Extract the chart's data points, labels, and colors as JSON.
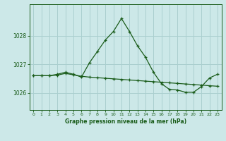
{
  "title": "Graphe pression niveau de la mer (hPa)",
  "background_color": "#cce8e8",
  "grid_color": "#aacfcf",
  "line_color": "#1a5c1a",
  "marker_color": "#1a5c1a",
  "xlim": [
    -0.5,
    23.5
  ],
  "ylim": [
    1025.4,
    1029.1
  ],
  "yticks": [
    1026,
    1027,
    1028
  ],
  "xticks": [
    0,
    1,
    2,
    3,
    4,
    5,
    6,
    7,
    8,
    9,
    10,
    11,
    12,
    13,
    14,
    15,
    16,
    17,
    18,
    19,
    20,
    21,
    22,
    23
  ],
  "series1_x": [
    0,
    1,
    2,
    3,
    4,
    5,
    6,
    7,
    8,
    9,
    10,
    11,
    12,
    13,
    14,
    15,
    16,
    17,
    18,
    19,
    20,
    21,
    22,
    23
  ],
  "series1_y": [
    1026.6,
    1026.6,
    1026.6,
    1026.65,
    1026.72,
    1026.65,
    1026.55,
    1027.05,
    1027.45,
    1027.85,
    1028.15,
    1028.6,
    1028.15,
    1027.65,
    1027.25,
    1026.72,
    1026.32,
    1026.12,
    1026.1,
    1026.02,
    1026.02,
    1026.22,
    1026.52,
    1026.65
  ],
  "series2_x": [
    0,
    1,
    2,
    3,
    4,
    5,
    6,
    7,
    8,
    9,
    10,
    11,
    12,
    13,
    14,
    15,
    16,
    17,
    18,
    19,
    20,
    21,
    22,
    23
  ],
  "series2_y": [
    1026.6,
    1026.6,
    1026.6,
    1026.62,
    1026.68,
    1026.63,
    1026.58,
    1026.55,
    1026.53,
    1026.51,
    1026.49,
    1026.47,
    1026.45,
    1026.43,
    1026.41,
    1026.39,
    1026.37,
    1026.35,
    1026.33,
    1026.31,
    1026.29,
    1026.27,
    1026.25,
    1026.23
  ]
}
